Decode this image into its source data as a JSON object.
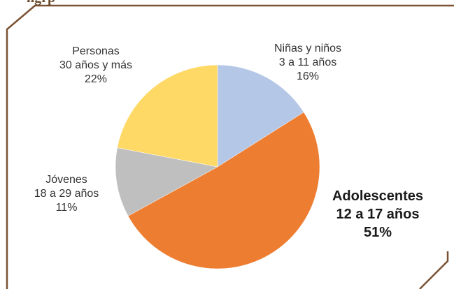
{
  "header_fragment": "ñgrp",
  "frame_color": "#7a5233",
  "chart_data": {
    "type": "pie",
    "title": "",
    "slices": [
      {
        "label_lines": [
          "Niñas y niños",
          "3 a 11 años",
          "16%"
        ],
        "value": 16,
        "color": "#b4c7e7"
      },
      {
        "label_lines": [
          "Adolescentes",
          "12 a 17 años",
          "51%"
        ],
        "value": 51,
        "color": "#ed7d31",
        "emphasis": true
      },
      {
        "label_lines": [
          "Jóvenes",
          "18 a 29 años",
          "11%"
        ],
        "value": 11,
        "color": "#bfbfbf"
      },
      {
        "label_lines": [
          "Personas",
          "30 años y más",
          "22%"
        ],
        "value": 22,
        "color": "#ffd966"
      }
    ],
    "start_angle_deg": 0,
    "direction": "clockwise"
  }
}
